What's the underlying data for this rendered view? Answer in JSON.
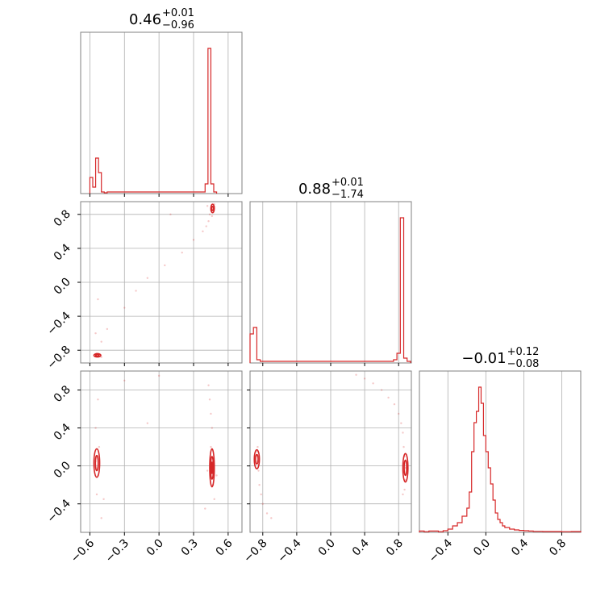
{
  "chart_data": {
    "type": "corner",
    "color": "#d62728",
    "parameters": [
      {
        "title": {
          "value": "0.46",
          "plus": "+0.01",
          "minus": "−0.96"
        },
        "range": [
          -0.68,
          0.72
        ],
        "ticks": [
          -0.6,
          -0.3,
          0.0,
          0.3,
          0.6
        ],
        "tick_labels": [
          "−0.6",
          "−0.3",
          "0.0",
          "0.3",
          "0.6"
        ]
      },
      {
        "title": {
          "value": "0.88",
          "plus": "+0.01",
          "minus": "−1.74"
        },
        "range": [
          -0.95,
          0.95
        ],
        "ticks": [
          -0.8,
          -0.4,
          0.0,
          0.4,
          0.8
        ],
        "tick_labels": [
          "−0.8",
          "−0.4",
          "0.0",
          "0.4",
          "0.8"
        ]
      },
      {
        "title": {
          "value": "−0.01",
          "plus": "+0.12",
          "minus": "−0.08"
        },
        "range": [
          -0.7,
          1.0
        ],
        "ticks": [
          -0.4,
          0.0,
          0.4,
          0.8
        ],
        "tick_labels": [
          "−0.4",
          "0.0",
          "0.4",
          "0.8"
        ]
      }
    ],
    "histograms": [
      {
        "edges": [
          -0.6,
          -0.575,
          -0.55,
          -0.525,
          -0.5,
          -0.475,
          -0.45,
          0.4,
          0.425,
          0.45,
          0.475,
          0.5
        ],
        "counts": [
          1.0,
          0.4,
          2.2,
          1.3,
          0.1,
          0.05,
          0.1,
          0.6,
          9.0,
          0.6,
          0.1
        ]
      },
      {
        "edges": [
          -0.95,
          -0.91,
          -0.87,
          -0.83,
          -0.79,
          -0.75,
          -0.2,
          0.7,
          0.74,
          0.78,
          0.82,
          0.86,
          0.9,
          0.94
        ],
        "counts": [
          1.8,
          2.2,
          0.2,
          0.1,
          0.1,
          0.1,
          0.1,
          0.1,
          0.2,
          0.6,
          9.0,
          0.3,
          0.1
        ]
      },
      {
        "edges": [
          -0.7,
          -0.65,
          -0.6,
          -0.55,
          -0.5,
          -0.45,
          -0.4,
          -0.35,
          -0.3,
          -0.25,
          -0.2,
          -0.175,
          -0.15,
          -0.125,
          -0.1,
          -0.075,
          -0.05,
          -0.025,
          0.0,
          0.025,
          0.05,
          0.075,
          0.1,
          0.125,
          0.15,
          0.175,
          0.2,
          0.25,
          0.3,
          0.35,
          0.4,
          0.45,
          0.5,
          0.6,
          0.7,
          0.8,
          0.9,
          1.0
        ],
        "counts": [
          0.08,
          0.04,
          0.08,
          0.08,
          0.04,
          0.1,
          0.2,
          0.4,
          0.6,
          1.0,
          1.5,
          2.5,
          5.0,
          6.8,
          7.5,
          9.0,
          8.0,
          6.0,
          5.0,
          4.0,
          3.0,
          2.0,
          1.2,
          0.8,
          0.6,
          0.4,
          0.3,
          0.2,
          0.15,
          0.12,
          0.1,
          0.08,
          0.06,
          0.05,
          0.05,
          0.04,
          0.05
        ]
      }
    ],
    "scatter_2d": [
      {
        "x_param": 0,
        "y_param": 1,
        "points": [
          [
            0.46,
            0.88
          ],
          [
            0.47,
            0.86
          ],
          [
            0.45,
            0.85
          ],
          [
            0.48,
            0.89
          ],
          [
            0.44,
            0.8
          ],
          [
            0.46,
            0.78
          ],
          [
            0.43,
            0.72
          ],
          [
            0.41,
            0.66
          ],
          [
            0.38,
            0.6
          ],
          [
            0.3,
            0.5
          ],
          [
            0.2,
            0.35
          ],
          [
            0.05,
            0.2
          ],
          [
            -0.1,
            0.05
          ],
          [
            -0.2,
            -0.1
          ],
          [
            -0.3,
            -0.3
          ],
          [
            -0.45,
            -0.55
          ],
          [
            -0.5,
            -0.7
          ],
          [
            -0.52,
            -0.85
          ],
          [
            -0.54,
            -0.84
          ],
          [
            -0.5,
            -0.88
          ],
          [
            -0.55,
            -0.6
          ],
          [
            -0.53,
            -0.2
          ],
          [
            0.1,
            0.8
          ],
          [
            0.48,
            0.92
          ],
          [
            0.42,
            0.9
          ]
        ],
        "contours": [
          {
            "cx": 0.465,
            "cy": 0.87,
            "rx": 0.015,
            "ry": 0.05
          },
          {
            "cx": 0.465,
            "cy": 0.87,
            "rx": 0.008,
            "ry": 0.025
          },
          {
            "cx": -0.535,
            "cy": -0.86,
            "rx": 0.03,
            "ry": 0.02
          },
          {
            "cx": -0.535,
            "cy": -0.86,
            "rx": 0.015,
            "ry": 0.01
          }
        ]
      },
      {
        "x_param": 0,
        "y_param": 2,
        "points": [
          [
            -0.55,
            0.05
          ],
          [
            -0.53,
            -0.1
          ],
          [
            -0.52,
            0.2
          ],
          [
            -0.54,
            -0.3
          ],
          [
            -0.5,
            -0.55
          ],
          [
            -0.55,
            0.4
          ],
          [
            -0.53,
            0.7
          ],
          [
            -0.48,
            -0.35
          ],
          [
            0.46,
            0.0
          ],
          [
            0.45,
            0.2
          ],
          [
            0.47,
            -0.2
          ],
          [
            0.46,
            0.4
          ],
          [
            0.45,
            0.55
          ],
          [
            0.48,
            -0.35
          ],
          [
            0.44,
            0.7
          ],
          [
            0.4,
            -0.45
          ],
          [
            0.5,
            -0.1
          ],
          [
            0.43,
            0.85
          ],
          [
            0.42,
            -0.05
          ],
          [
            -0.3,
            0.9
          ],
          [
            -0.1,
            0.45
          ],
          [
            0.0,
            0.95
          ]
        ],
        "contours": [
          {
            "cx": -0.54,
            "cy": 0.03,
            "rx": 0.025,
            "ry": 0.15
          },
          {
            "cx": -0.54,
            "cy": 0.03,
            "rx": 0.012,
            "ry": 0.08
          },
          {
            "cx": 0.46,
            "cy": -0.02,
            "rx": 0.02,
            "ry": 0.2
          },
          {
            "cx": 0.46,
            "cy": -0.02,
            "rx": 0.012,
            "ry": 0.12
          },
          {
            "cx": 0.46,
            "cy": -0.02,
            "rx": 0.005,
            "ry": 0.06
          }
        ]
      },
      {
        "x_param": 1,
        "y_param": 2,
        "points": [
          [
            -0.86,
            0.05
          ],
          [
            -0.88,
            0.1
          ],
          [
            -0.85,
            -0.05
          ],
          [
            -0.84,
            -0.2
          ],
          [
            -0.82,
            -0.3
          ],
          [
            -0.8,
            -0.4
          ],
          [
            -0.75,
            -0.5
          ],
          [
            -0.7,
            -0.55
          ],
          [
            -0.87,
            0.15
          ],
          [
            -0.86,
            0.2
          ],
          [
            0.88,
            -0.02
          ],
          [
            0.87,
            0.1
          ],
          [
            0.86,
            0.2
          ],
          [
            0.85,
            0.35
          ],
          [
            0.83,
            0.45
          ],
          [
            0.8,
            0.55
          ],
          [
            0.75,
            0.65
          ],
          [
            0.68,
            0.72
          ],
          [
            0.6,
            0.8
          ],
          [
            0.5,
            0.87
          ],
          [
            0.4,
            0.92
          ],
          [
            0.3,
            0.96
          ],
          [
            0.88,
            -0.15
          ],
          [
            0.87,
            -0.25
          ],
          [
            0.85,
            -0.3
          ]
        ],
        "contours": [
          {
            "cx": -0.87,
            "cy": 0.07,
            "rx": 0.03,
            "ry": 0.1
          },
          {
            "cx": -0.87,
            "cy": 0.07,
            "rx": 0.015,
            "ry": 0.05
          },
          {
            "cx": 0.88,
            "cy": -0.02,
            "rx": 0.03,
            "ry": 0.15
          },
          {
            "cx": 0.88,
            "cy": -0.02,
            "rx": 0.015,
            "ry": 0.08
          }
        ]
      }
    ],
    "grid": true
  }
}
